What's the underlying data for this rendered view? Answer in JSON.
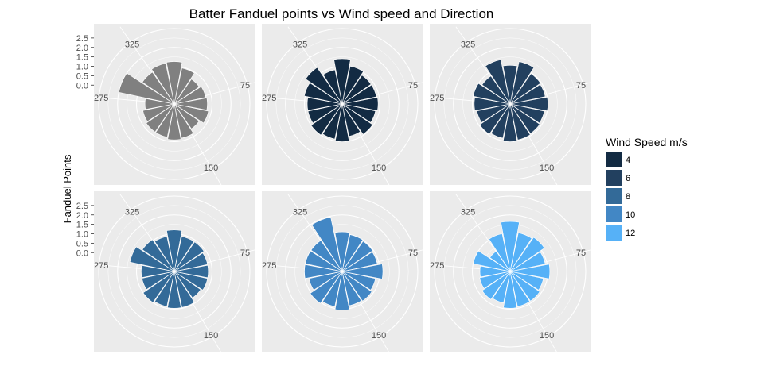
{
  "chart_data": {
    "type": "bar",
    "polar": true,
    "title": "Batter Fanduel points vs Wind speed and Direction",
    "ylabel": "Fanduel Points",
    "xlabel": "",
    "y_ticks": [
      "2.5",
      "2.0",
      "1.5",
      "1.0",
      "0.5",
      "0.0"
    ],
    "y_tick_values": [
      2.5,
      2.0,
      1.5,
      1.0,
      0.5,
      0.0
    ],
    "angle_ticks": [
      "325",
      "75",
      "150",
      "275"
    ],
    "angle_tick_values": [
      325,
      75,
      150,
      275
    ],
    "angle_range": [
      0,
      360
    ],
    "radial_range": [
      -1.0,
      3.0
    ],
    "grid": true,
    "legend": {
      "title": "Wind Speed m/s",
      "placement": "right",
      "entries": [
        {
          "label": "4",
          "color": "#132B43"
        },
        {
          "label": "6",
          "color": "#22405F"
        },
        {
          "label": "8",
          "color": "#336A98"
        },
        {
          "label": "10",
          "color": "#4287C5"
        },
        {
          "label": "12",
          "color": "#56B1F7"
        }
      ]
    },
    "directions": [
      0,
      22.5,
      45,
      67.5,
      90,
      112.5,
      135,
      157.5,
      180,
      202.5,
      225,
      247.5,
      270,
      292.5,
      315,
      337.5
    ],
    "panels": [
      {
        "color": "#808080",
        "values": [
          1.25,
          0.95,
          0.6,
          0.7,
          0.75,
          0.85,
          0.6,
          0.85,
          0.9,
          0.8,
          0.8,
          0.7,
          0.55,
          2.0,
          1.05,
          1.2
        ]
      },
      {
        "color": "#132B43",
        "values": [
          1.4,
          1.05,
          0.85,
          0.85,
          0.9,
          0.8,
          0.95,
          0.75,
          1.0,
          0.9,
          1.0,
          0.85,
          0.85,
          1.05,
          1.35,
          0.85
        ]
      },
      {
        "color": "#22405F",
        "values": [
          1.05,
          1.3,
          0.95,
          0.9,
          1.0,
          0.85,
          0.9,
          0.95,
          1.0,
          0.85,
          0.95,
          0.8,
          0.9,
          1.0,
          0.8,
          1.4
        ]
      },
      {
        "color": "#336A98",
        "values": [
          1.2,
          0.9,
          0.9,
          0.8,
          0.8,
          0.8,
          0.7,
          0.95,
          0.95,
          0.9,
          1.0,
          0.75,
          0.75,
          1.4,
          1.05,
          0.9
        ]
      },
      {
        "color": "#4287C5",
        "values": [
          1.1,
          1.0,
          0.95,
          0.9,
          1.15,
          0.8,
          0.9,
          0.85,
          1.05,
          0.9,
          1.05,
          0.8,
          1.0,
          1.0,
          1.0,
          1.95
        ]
      },
      {
        "color": "#56B1F7",
        "values": [
          1.65,
          1.1,
          1.2,
          0.9,
          1.1,
          0.8,
          0.9,
          0.9,
          0.95,
          0.7,
          0.8,
          0.65,
          0.6,
          1.0,
          0.3,
          1.05
        ]
      }
    ]
  }
}
